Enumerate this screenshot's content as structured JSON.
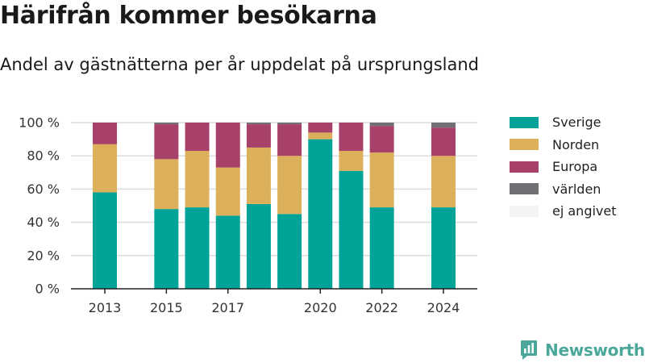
{
  "header": {
    "title": "Härifrån kommer besökarna",
    "subtitle": "Andel av gästnätterna per år uppdelat på ursprungsland"
  },
  "chart_data": {
    "type": "bar",
    "stacked": true,
    "title": "Härifrån kommer besökarna",
    "subtitle": "Andel av gästnätterna per år uppdelat på ursprungsland",
    "xlabel": "",
    "ylabel": "",
    "x": [
      2013,
      2015,
      2016,
      2017,
      2018,
      2019,
      2020,
      2021,
      2022,
      2024
    ],
    "x_ticks": [
      "2013",
      "2015",
      "2017",
      "2020",
      "2022",
      "2024"
    ],
    "x_range": [
      2011.9,
      2025.1
    ],
    "ylim": [
      0,
      100
    ],
    "y_ticks": [
      0,
      20,
      40,
      60,
      80,
      100
    ],
    "y_tick_labels": [
      "0 %",
      "20 %",
      "40 %",
      "60 %",
      "80 %",
      "100 %"
    ],
    "grid": true,
    "legend_position": "right",
    "series": [
      {
        "name": "Sverige",
        "color": "#00a398",
        "values": [
          58,
          48,
          49,
          44,
          51,
          45,
          90,
          71,
          49,
          49
        ]
      },
      {
        "name": "Norden",
        "color": "#dcb05a",
        "values": [
          29,
          30,
          34,
          29,
          34,
          35,
          4,
          12,
          33,
          31
        ]
      },
      {
        "name": "Europa",
        "color": "#a7416a",
        "values": [
          13,
          21,
          17,
          27,
          14,
          19,
          6,
          17,
          16,
          17
        ]
      },
      {
        "name": "världen",
        "color": "#6f6f74",
        "values": [
          0,
          1,
          0,
          0,
          1,
          1,
          0,
          0,
          2,
          3
        ]
      },
      {
        "name": "ej angivet",
        "color": "#f4f4f4",
        "values": [
          0,
          0,
          0,
          0,
          0,
          0,
          0,
          0,
          0,
          0
        ]
      }
    ]
  },
  "brand": {
    "name": "Newsworthy",
    "icon": "newsworthy-logo-icon",
    "color": "#4aa79a"
  }
}
